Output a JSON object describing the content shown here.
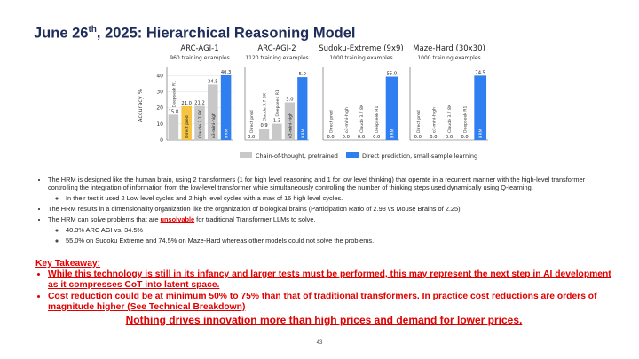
{
  "header": {
    "title_parts": [
      "June 26",
      "th",
      ", 2025: Hierarchical Reasoning Model"
    ]
  },
  "chart_data": [
    {
      "type": "bar",
      "title": "ARC-AGI-1",
      "subtitle": "960 training examples",
      "ylabel": "Accuracy %",
      "categories": [
        "Deepseek R1",
        "Direct pred",
        "Claude 3.7 8K",
        "o3-mini-high",
        "HRM"
      ],
      "values": [
        15.8,
        21.0,
        21.2,
        34.5,
        40.3
      ],
      "value_labels": [
        "15.8",
        "21.0",
        "21.2",
        "34.5",
        "40.3"
      ],
      "colors": [
        "#c8c8c8",
        "#f5c542",
        "#c8c8c8",
        "#c8c8c8",
        "#2f7ff0"
      ],
      "ylim": [
        0,
        43
      ],
      "yticks": [
        0,
        10,
        20,
        30,
        40
      ],
      "grid": true
    },
    {
      "type": "bar",
      "title": "ARC-AGI-2",
      "subtitle": "1120 training examples",
      "categories": [
        "Direct pred",
        "Claude 3.7 8K",
        "Deepseek R1",
        "o3-mini-high",
        "HRM"
      ],
      "values": [
        0.0,
        0.9,
        1.3,
        3.0,
        5.0
      ],
      "value_labels": [
        "0.0",
        "0.9",
        "1.3",
        "3.0",
        "5.0"
      ],
      "colors": [
        "#f5c542",
        "#c8c8c8",
        "#c8c8c8",
        "#c8c8c8",
        "#2f7ff0"
      ],
      "ylim": [
        0,
        5.5
      ],
      "grid": true
    },
    {
      "type": "bar",
      "title": "Sudoku-Extreme (9x9)",
      "subtitle": "1000 training examples",
      "categories": [
        "Direct pred",
        "o3-mini-high",
        "Claude 3.7 8K",
        "Deepseek R1",
        "HRM"
      ],
      "values": [
        0.0,
        0.0,
        0.0,
        0.0,
        55.0
      ],
      "value_labels": [
        "0.0",
        "0.0",
        "0.0",
        "0.0",
        "55.0"
      ],
      "colors": [
        "#f5c542",
        "#c8c8c8",
        "#c8c8c8",
        "#c8c8c8",
        "#2f7ff0"
      ],
      "ylim": [
        0,
        60
      ],
      "grid": true
    },
    {
      "type": "bar",
      "title": "Maze-Hard (30x30)",
      "subtitle": "1000 training examples",
      "categories": [
        "Direct pred",
        "o3-mini-high",
        "Claude 3.7 8K",
        "Deepseek R1",
        "HRM"
      ],
      "values": [
        0.0,
        0.0,
        0.0,
        0.0,
        74.5
      ],
      "value_labels": [
        "0.0",
        "0.0",
        "0.0",
        "0.0",
        "74.5"
      ],
      "colors": [
        "#f5c542",
        "#c8c8c8",
        "#c8c8c8",
        "#c8c8c8",
        "#2f7ff0"
      ],
      "ylim": [
        0,
        80
      ],
      "grid": true
    }
  ],
  "legend": [
    {
      "name": "Chain-of-thought, pretrained",
      "color": "#c8c8c8"
    },
    {
      "name": "Direct prediction, small-sample learning",
      "color": "#2f7ff0"
    }
  ],
  "bullets": [
    {
      "parts": [
        "The HRM is designed like the human brain, using 2 transformers (1 for high level reasoning and 1 for low level thinking) that operate in a recurrent manner with the high-level transformer controlling the integration of information from the low-level transformer while simultaneously controlling the number of thinking steps used dynamically using Q-learning."
      ],
      "sub": [
        "In their test it used 2 Low level cycles and 2 high level cycles with a max of 16 high level cycles."
      ]
    },
    {
      "parts": [
        "The HRM results in a dimensionality organization like the organization of biological brains (Participation Ratio of 2.98 vs Mouse Brains of 2.25)."
      ]
    },
    {
      "parts": [
        "The HRM can solve problems that are ",
        "unsolvable",
        " for traditional Transformer LLMs to solve."
      ],
      "sub": [
        "40.3% ARC AGI vs. 34.5%",
        "55.0% on Sudoku Extreme and 74.5% on Maze-Hard whereas other models could not solve the problems."
      ]
    }
  ],
  "takeaway": {
    "heading": "Key Takeaway:",
    "points": [
      "While this technology is still in its infancy and larger tests must be performed, this may represent the next step in AI development as it compresses CoT into latent space.",
      "Cost reduction could be at minimum 50% to 75% than that of traditional transformers. In practice cost reductions are orders of magnitude higher (See Technical Breakdown)"
    ],
    "closing": "Nothing drives innovation more than high prices and demand for lower prices."
  },
  "page_number": 43
}
